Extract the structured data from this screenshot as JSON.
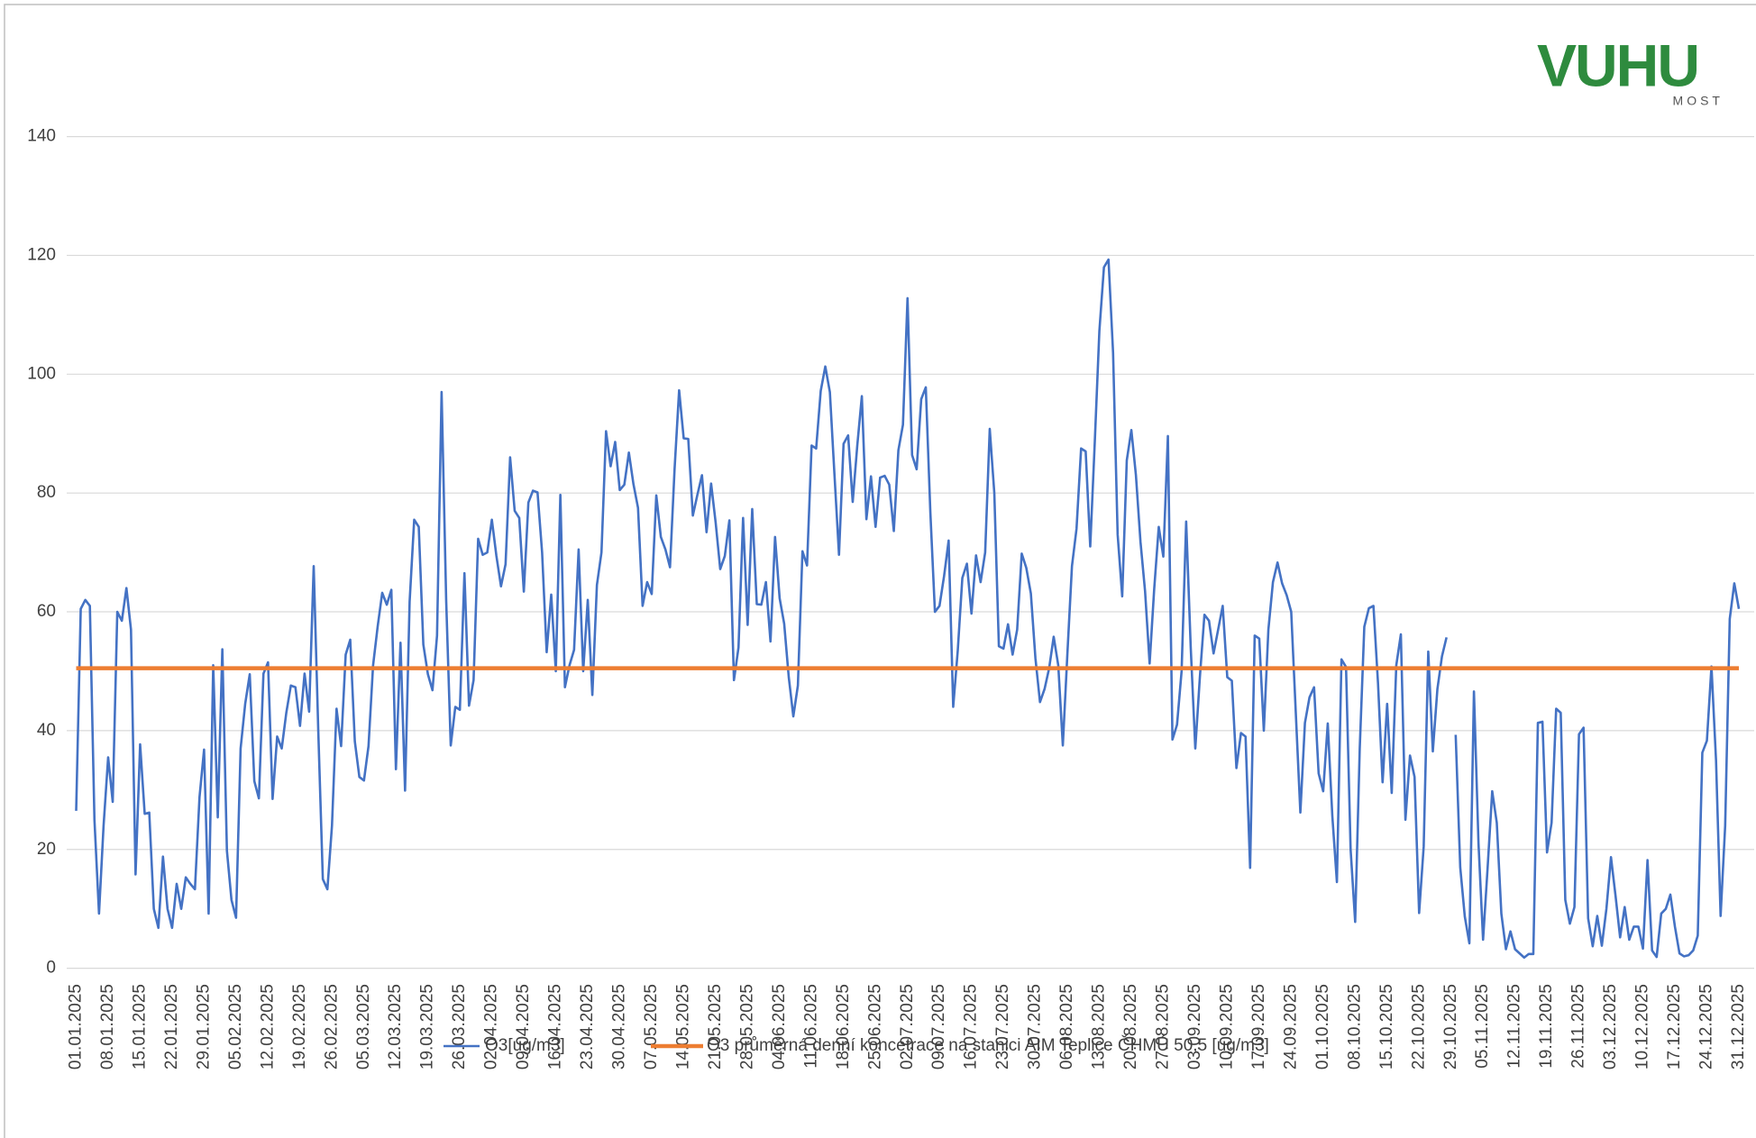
{
  "logo": {
    "brand": "VUHU",
    "place": "MOST"
  },
  "chart_data": {
    "type": "line",
    "categories": [
      "01.01.2025",
      null,
      null,
      null,
      null,
      null,
      null,
      "08.01.2025",
      null,
      null,
      null,
      null,
      null,
      null,
      "15.01.2025",
      null,
      null,
      null,
      null,
      null,
      null,
      "22.01.2025",
      null,
      null,
      null,
      null,
      null,
      null,
      "29.01.2025",
      null,
      null,
      null,
      null,
      null,
      null,
      "05.02.2025",
      null,
      null,
      null,
      null,
      null,
      null,
      "12.02.2025",
      null,
      null,
      null,
      null,
      null,
      null,
      "19.02.2025",
      null,
      null,
      null,
      null,
      null,
      null,
      "26.02.2025",
      null,
      null,
      null,
      null,
      null,
      null,
      "05.03.2025",
      null,
      null,
      null,
      null,
      null,
      null,
      "12.03.2025",
      null,
      null,
      null,
      null,
      null,
      null,
      "19.03.2025",
      null,
      null,
      null,
      null,
      null,
      null,
      "26.03.2025",
      null,
      null,
      null,
      null,
      null,
      null,
      "02.04.2025",
      null,
      null,
      null,
      null,
      null,
      null,
      "09.04.2025",
      null,
      null,
      null,
      null,
      null,
      null,
      "16.04.2025",
      null,
      null,
      null,
      null,
      null,
      null,
      "23.04.2025",
      null,
      null,
      null,
      null,
      null,
      null,
      "30.04.2025",
      null,
      null,
      null,
      null,
      null,
      null,
      "07.05.2025",
      null,
      null,
      null,
      null,
      null,
      null,
      "14.05.2025",
      null,
      null,
      null,
      null,
      null,
      null,
      "21.05.2025",
      null,
      null,
      null,
      null,
      null,
      null,
      "28.05.2025",
      null,
      null,
      null,
      null,
      null,
      null,
      "04.06.2025",
      null,
      null,
      null,
      null,
      null,
      null,
      "11.06.2025",
      null,
      null,
      null,
      null,
      null,
      null,
      "18.06.2025",
      null,
      null,
      null,
      null,
      null,
      null,
      "25.06.2025",
      null,
      null,
      null,
      null,
      null,
      null,
      "02.07.2025",
      null,
      null,
      null,
      null,
      null,
      null,
      "09.07.2025",
      null,
      null,
      null,
      null,
      null,
      null,
      "16.07.2025",
      null,
      null,
      null,
      null,
      null,
      null,
      "23.07.2025",
      null,
      null,
      null,
      null,
      null,
      null,
      "30.07.2025",
      null,
      null,
      null,
      null,
      null,
      null,
      "06.08.2025",
      null,
      null,
      null,
      null,
      null,
      null,
      "13.08.2025",
      null,
      null,
      null,
      null,
      null,
      null,
      "20.08.2025",
      null,
      null,
      null,
      null,
      null,
      null,
      "27.08.2025",
      null,
      null,
      null,
      null,
      null,
      null,
      "03.09.2025",
      null,
      null,
      null,
      null,
      null,
      null,
      "10.09.2025",
      null,
      null,
      null,
      null,
      null,
      null,
      "17.09.2025",
      null,
      null,
      null,
      null,
      null,
      null,
      "24.09.2025",
      null,
      null,
      null,
      null,
      null,
      null,
      "01.10.2025",
      null,
      null,
      null,
      null,
      null,
      null,
      "08.10.2025",
      null,
      null,
      null,
      null,
      null,
      null,
      "15.10.2025",
      null,
      null,
      null,
      null,
      null,
      null,
      "22.10.2025",
      null,
      null,
      null,
      null,
      null,
      null,
      "29.10.2025",
      null,
      null,
      null,
      null,
      null,
      null,
      "05.11.2025",
      null,
      null,
      null,
      null,
      null,
      null,
      "12.11.2025",
      null,
      null,
      null,
      null,
      null,
      null,
      "19.11.2025",
      null,
      null,
      null,
      null,
      null,
      null,
      "26.11.2025",
      null,
      null,
      null,
      null,
      null,
      null,
      "03.12.2025",
      null,
      null,
      null,
      null,
      null,
      null,
      "10.12.2025",
      null,
      null,
      null,
      null,
      null,
      null,
      "17.12.2025",
      null,
      null,
      null,
      null,
      null,
      null,
      "24.12.2025",
      null,
      null,
      null,
      null,
      null,
      null,
      "31.12.2025"
    ],
    "series": [
      {
        "name": "O3[ug/m3]",
        "color": "#4472c4",
        "values": [
          26.5,
          60.5,
          62,
          61,
          25,
          9.2,
          24,
          35.5,
          28,
          60,
          58.5,
          64,
          57,
          15.8,
          37.7,
          26,
          26.2,
          10,
          6.8,
          18.8,
          10,
          6.8,
          14.2,
          10,
          15.3,
          14.2,
          13.3,
          28.8,
          36.8,
          9.2,
          51,
          25.4,
          53.7,
          19.8,
          11.5,
          8.5,
          37,
          44.5,
          49.5,
          31.5,
          28.6,
          49.6,
          51.5,
          28.5,
          39,
          37,
          43,
          47.6,
          47.3,
          40.8,
          49.6,
          43.2,
          67.7,
          40,
          15,
          13.3,
          24,
          43.7,
          37.4,
          52.8,
          55.3,
          38.2,
          32.2,
          31.6,
          37.4,
          51,
          57.5,
          63.2,
          61.2,
          63.7,
          33.5,
          54.8,
          29.9,
          61.7,
          75.5,
          74.3,
          54.5,
          49.5,
          46.8,
          56,
          97,
          62,
          37.5,
          44,
          43.5,
          66.5,
          44.2,
          48.5,
          72.3,
          69.6,
          70,
          75.5,
          69.4,
          64.3,
          68,
          86,
          77,
          75.8,
          63.4,
          78.4,
          80.4,
          80.1,
          70,
          53.2,
          62.9,
          50,
          79.7,
          47.3,
          51,
          53.6,
          70.5,
          50,
          62,
          46,
          64.5,
          70,
          90.4,
          84.5,
          88.6,
          80.5,
          81.4,
          86.8,
          81.5,
          77.5,
          61,
          65,
          63,
          79.6,
          72.6,
          70.5,
          67.5,
          84,
          97.3,
          89.2,
          89.1,
          76.2,
          79.7,
          83,
          73.4,
          81.6,
          75,
          67.2,
          69.4,
          75.4,
          48.5,
          54,
          75.8,
          57.8,
          77.3,
          61.3,
          61.2,
          65,
          55,
          72.6,
          62.3,
          58,
          49,
          42.4,
          47.6,
          70.2,
          67.8,
          88,
          87.5,
          97.2,
          101.3,
          97,
          83.2,
          69.6,
          88.3,
          89.7,
          78.5,
          88,
          96.3,
          75.6,
          82.8,
          74.3,
          82.6,
          82.9,
          81.4,
          73.6,
          87.2,
          91.5,
          112.8,
          86.4,
          84,
          95.8,
          97.8,
          76.7,
          60,
          61,
          66,
          72,
          44,
          53.5,
          65.7,
          68.1,
          59.7,
          69.5,
          65,
          70,
          90.8,
          80,
          54.2,
          53.8,
          57.9,
          52.8,
          57,
          69.8,
          67.4,
          63.1,
          52.2,
          44.8,
          47,
          50.5,
          55.8,
          51,
          37.5,
          53,
          67.7,
          74,
          87.5,
          87,
          71,
          88.7,
          107.3,
          118,
          119.3,
          103.6,
          73,
          62.6,
          85.5,
          90.6,
          83,
          71.8,
          63.5,
          51.3,
          63.8,
          74.3,
          69.3,
          89.6,
          38.5,
          41,
          50,
          75.2,
          54,
          37,
          49,
          59.5,
          58.5,
          53,
          57,
          61,
          49,
          48.4,
          33.7,
          39.6,
          39,
          16.9,
          56,
          55.5,
          40,
          57,
          65,
          68.3,
          64.8,
          62.8,
          60,
          43,
          26.2,
          41.3,
          45.6,
          47.3,
          32.8,
          29.8,
          41.2,
          25.6,
          14.5,
          52,
          50.7,
          20,
          7.8,
          37,
          57.5,
          60.6,
          61,
          48,
          31.3,
          44.5,
          29.5,
          51,
          56.2,
          25,
          35.8,
          32.2,
          9.3,
          20.5,
          53.3,
          36.5,
          47,
          52.5,
          55.7,
          null,
          39.3,
          17,
          8.7,
          4.2,
          46.6,
          21,
          4.8,
          17,
          29.8,
          24.5,
          9.2,
          3.2,
          6.2,
          3.2,
          2.5,
          1.8,
          2.4,
          2.4,
          41.3,
          41.5,
          19.5,
          24.5,
          43.7,
          43,
          11.5,
          7.5,
          10.3,
          39.4,
          40.5,
          8.4,
          3.7,
          8.8,
          3.8,
          10,
          18.7,
          12.2,
          5.2,
          10.3,
          4.8,
          7,
          7,
          3.3,
          18.2,
          3,
          1.9,
          9.2,
          10,
          12.4,
          7,
          2.5,
          2,
          2.2,
          3,
          5.5,
          36.3,
          38.3,
          50.8,
          35,
          8.8,
          24,
          58.8,
          64.8,
          60.5
        ]
      },
      {
        "name": "O3 průměrná denní koncetrace na stanici AIM Teplice ČHMÚ 50,5 [ug/m3]",
        "color": "#ed7d31",
        "values": [
          50.5,
          50.5,
          50.5,
          50.5,
          50.5,
          50.5,
          50.5,
          50.5,
          50.5,
          50.5,
          50.5,
          50.5,
          50.5,
          50.5,
          50.5,
          50.5,
          50.5,
          50.5,
          50.5,
          50.5,
          50.5,
          50.5,
          50.5,
          50.5,
          50.5,
          50.5,
          50.5,
          50.5,
          50.5,
          50.5,
          50.5,
          50.5,
          50.5,
          50.5,
          50.5,
          50.5,
          50.5,
          50.5,
          50.5,
          50.5,
          50.5,
          50.5,
          50.5,
          50.5,
          50.5,
          50.5,
          50.5,
          50.5,
          50.5,
          50.5,
          50.5,
          50.5,
          50.5,
          50.5,
          50.5,
          50.5,
          50.5,
          50.5,
          50.5,
          50.5,
          50.5,
          50.5,
          50.5,
          50.5,
          50.5,
          50.5,
          50.5,
          50.5,
          50.5,
          50.5,
          50.5,
          50.5,
          50.5,
          50.5,
          50.5,
          50.5,
          50.5,
          50.5,
          50.5,
          50.5,
          50.5,
          50.5,
          50.5,
          50.5,
          50.5,
          50.5,
          50.5,
          50.5,
          50.5,
          50.5,
          50.5,
          50.5,
          50.5,
          50.5,
          50.5,
          50.5,
          50.5,
          50.5,
          50.5,
          50.5,
          50.5,
          50.5,
          50.5,
          50.5,
          50.5,
          50.5,
          50.5,
          50.5,
          50.5,
          50.5,
          50.5,
          50.5,
          50.5,
          50.5,
          50.5,
          50.5,
          50.5,
          50.5,
          50.5,
          50.5,
          50.5,
          50.5,
          50.5,
          50.5,
          50.5,
          50.5,
          50.5,
          50.5,
          50.5,
          50.5,
          50.5,
          50.5,
          50.5,
          50.5,
          50.5,
          50.5,
          50.5,
          50.5,
          50.5,
          50.5,
          50.5,
          50.5,
          50.5,
          50.5,
          50.5,
          50.5,
          50.5,
          50.5,
          50.5,
          50.5,
          50.5,
          50.5,
          50.5,
          50.5,
          50.5,
          50.5,
          50.5,
          50.5,
          50.5,
          50.5,
          50.5,
          50.5,
          50.5,
          50.5,
          50.5,
          50.5,
          50.5,
          50.5,
          50.5,
          50.5,
          50.5,
          50.5,
          50.5,
          50.5,
          50.5,
          50.5,
          50.5,
          50.5,
          50.5,
          50.5,
          50.5,
          50.5,
          50.5,
          50.5,
          50.5,
          50.5,
          50.5,
          50.5,
          50.5,
          50.5,
          50.5,
          50.5,
          50.5,
          50.5,
          50.5,
          50.5,
          50.5,
          50.5,
          50.5,
          50.5,
          50.5,
          50.5,
          50.5,
          50.5,
          50.5,
          50.5,
          50.5,
          50.5,
          50.5,
          50.5,
          50.5,
          50.5,
          50.5,
          50.5,
          50.5,
          50.5,
          50.5,
          50.5,
          50.5,
          50.5,
          50.5,
          50.5,
          50.5,
          50.5,
          50.5,
          50.5,
          50.5,
          50.5,
          50.5,
          50.5,
          50.5,
          50.5,
          50.5,
          50.5,
          50.5,
          50.5,
          50.5,
          50.5,
          50.5,
          50.5,
          50.5,
          50.5,
          50.5,
          50.5,
          50.5,
          50.5,
          50.5,
          50.5,
          50.5,
          50.5,
          50.5,
          50.5,
          50.5,
          50.5,
          50.5,
          50.5,
          50.5,
          50.5,
          50.5,
          50.5,
          50.5,
          50.5,
          50.5,
          50.5,
          50.5,
          50.5,
          50.5,
          50.5,
          50.5,
          50.5,
          50.5,
          50.5,
          50.5,
          50.5,
          50.5,
          50.5,
          50.5,
          50.5,
          50.5,
          50.5,
          50.5,
          50.5,
          50.5,
          50.5,
          50.5,
          50.5,
          50.5,
          50.5,
          50.5,
          50.5,
          50.5,
          50.5,
          50.5,
          50.5,
          50.5,
          50.5,
          50.5,
          50.5,
          50.5,
          50.5,
          50.5,
          50.5,
          50.5,
          50.5,
          50.5,
          50.5,
          50.5,
          50.5,
          50.5,
          50.5,
          50.5,
          50.5,
          50.5,
          50.5,
          50.5,
          50.5,
          50.5,
          50.5,
          50.5,
          50.5,
          50.5,
          50.5,
          50.5,
          50.5,
          50.5,
          50.5,
          50.5,
          50.5,
          50.5,
          50.5,
          50.5,
          50.5,
          50.5,
          50.5,
          50.5,
          50.5,
          50.5,
          50.5,
          50.5,
          50.5,
          50.5,
          50.5,
          50.5,
          50.5,
          50.5,
          50.5,
          50.5,
          50.5,
          50.5,
          50.5,
          50.5,
          50.5,
          50.5,
          50.5,
          50.5,
          50.5,
          50.5,
          50.5,
          50.5,
          50.5,
          50.5,
          50.5,
          50.5,
          50.5,
          50.5
        ]
      }
    ],
    "ylim": [
      0,
      140
    ],
    "yticks": [
      0,
      20,
      40,
      60,
      80,
      100,
      120,
      140
    ],
    "grid": true,
    "legend": "bottom"
  }
}
